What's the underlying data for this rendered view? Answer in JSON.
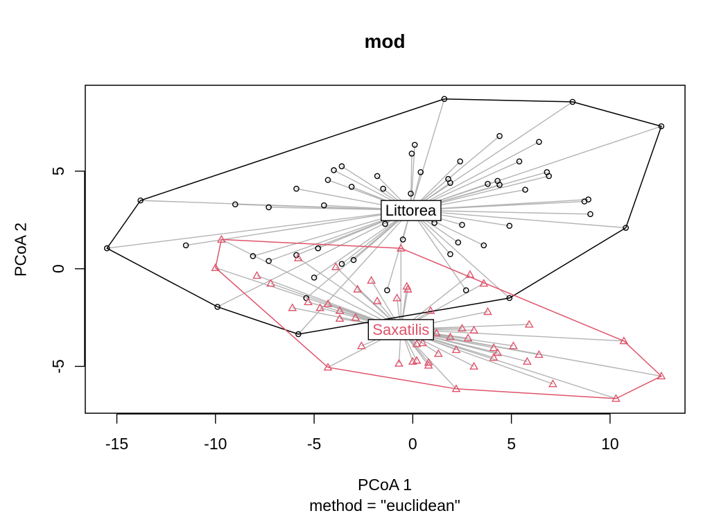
{
  "chart_data": {
    "type": "scatter",
    "title": "mod",
    "xlabel": "PCoA 1",
    "ylabel": "PCoA 2",
    "subtitle": "method = \"euclidean\"",
    "xlim": [
      -16.6,
      13.8
    ],
    "ylim": [
      -7.4,
      9.4
    ],
    "x_ticks": [
      -15,
      -10,
      -5,
      0,
      5,
      10
    ],
    "y_ticks": [
      -5,
      0,
      5
    ],
    "groups": [
      {
        "name": "Littorea",
        "color": "#000000",
        "marker": "circle",
        "centroid": [
          -0.1,
          3.0
        ],
        "points": [
          [
            -15.5,
            1.05
          ],
          [
            -13.8,
            3.5
          ],
          [
            -11.5,
            1.2
          ],
          [
            -9.9,
            -1.95
          ],
          [
            -9.0,
            3.3
          ],
          [
            -8.1,
            0.65
          ],
          [
            -7.3,
            0.4
          ],
          [
            -7.3,
            3.15
          ],
          [
            -5.9,
            4.1
          ],
          [
            -5.9,
            0.7
          ],
          [
            -5.8,
            -3.35
          ],
          [
            -5.4,
            -1.5
          ],
          [
            -5.0,
            -0.45
          ],
          [
            -4.8,
            1.05
          ],
          [
            -4.5,
            3.25
          ],
          [
            -4.3,
            4.55
          ],
          [
            -4.0,
            5.05
          ],
          [
            -3.6,
            5.25
          ],
          [
            -3.6,
            0.25
          ],
          [
            -3.1,
            4.2
          ],
          [
            -3.0,
            0.45
          ],
          [
            -1.8,
            4.75
          ],
          [
            -1.5,
            4.1
          ],
          [
            -1.4,
            2.3
          ],
          [
            -1.3,
            -1.1
          ],
          [
            -0.5,
            1.5
          ],
          [
            -0.1,
            3.85
          ],
          [
            -0.05,
            5.9
          ],
          [
            0.1,
            6.35
          ],
          [
            0.4,
            4.95
          ],
          [
            1.1,
            2.35
          ],
          [
            1.8,
            4.6
          ],
          [
            1.9,
            4.4
          ],
          [
            1.9,
            0.75
          ],
          [
            2.3,
            1.35
          ],
          [
            2.4,
            5.5
          ],
          [
            2.5,
            2.25
          ],
          [
            2.7,
            -1.1
          ],
          [
            3.6,
            1.2
          ],
          [
            3.8,
            4.35
          ],
          [
            4.3,
            4.5
          ],
          [
            4.4,
            6.8
          ],
          [
            4.4,
            4.3
          ],
          [
            4.9,
            2.2
          ],
          [
            4.9,
            -1.5
          ],
          [
            5.4,
            5.5
          ],
          [
            5.7,
            4.05
          ],
          [
            6.4,
            6.5
          ],
          [
            6.8,
            4.95
          ],
          [
            6.9,
            4.75
          ],
          [
            8.1,
            8.55
          ],
          [
            8.7,
            3.45
          ],
          [
            8.9,
            3.55
          ],
          [
            9.0,
            2.8
          ],
          [
            10.8,
            2.1
          ],
          [
            12.6,
            7.3
          ],
          [
            1.6,
            8.7
          ]
        ],
        "hull": [
          [
            1.6,
            8.7
          ],
          [
            8.1,
            8.55
          ],
          [
            12.6,
            7.3
          ],
          [
            10.8,
            2.1
          ],
          [
            4.9,
            -1.5
          ],
          [
            -5.8,
            -3.35
          ],
          [
            -9.9,
            -1.95
          ],
          [
            -15.5,
            1.05
          ],
          [
            -13.8,
            3.5
          ]
        ]
      },
      {
        "name": "Saxatilis",
        "color": "#DF536B",
        "marker": "triangle",
        "centroid": [
          -0.6,
          -3.1
        ],
        "points": [
          [
            -9.7,
            1.5
          ],
          [
            -10.0,
            0.05
          ],
          [
            -7.9,
            -0.35
          ],
          [
            -7.2,
            -0.75
          ],
          [
            -6.1,
            -2.0
          ],
          [
            -5.8,
            0.55
          ],
          [
            -5.3,
            -1.7
          ],
          [
            -4.7,
            -2.0
          ],
          [
            -4.3,
            -1.8
          ],
          [
            -4.3,
            -5.05
          ],
          [
            -3.9,
            0.1
          ],
          [
            -3.7,
            -2.15
          ],
          [
            -3.7,
            -2.55
          ],
          [
            -2.9,
            -2.5
          ],
          [
            -2.8,
            -1.05
          ],
          [
            -2.6,
            -3.95
          ],
          [
            -2.1,
            -0.6
          ],
          [
            -1.8,
            -1.65
          ],
          [
            -0.8,
            -1.5
          ],
          [
            -0.7,
            -4.85
          ],
          [
            -0.6,
            1.05
          ],
          [
            -0.3,
            -0.9
          ],
          [
            -0.25,
            -1.05
          ],
          [
            0.0,
            -4.75
          ],
          [
            0.2,
            -4.7
          ],
          [
            0.2,
            -3.85
          ],
          [
            0.5,
            -3.8
          ],
          [
            0.8,
            -4.8
          ],
          [
            0.8,
            -4.95
          ],
          [
            0.9,
            -2.15
          ],
          [
            1.3,
            -4.35
          ],
          [
            1.9,
            -3.5
          ],
          [
            2.2,
            -4.15
          ],
          [
            2.2,
            -6.15
          ],
          [
            2.5,
            -3.05
          ],
          [
            2.8,
            -3.55
          ],
          [
            2.9,
            -0.3
          ],
          [
            3.1,
            -3.15
          ],
          [
            3.1,
            -5.0
          ],
          [
            3.6,
            -0.75
          ],
          [
            3.8,
            -2.2
          ],
          [
            4.1,
            -4.05
          ],
          [
            4.1,
            -4.55
          ],
          [
            4.3,
            -4.3
          ],
          [
            5.1,
            -3.95
          ],
          [
            5.8,
            -4.75
          ],
          [
            5.9,
            -2.85
          ],
          [
            6.4,
            -4.4
          ],
          [
            7.1,
            -5.9
          ],
          [
            10.3,
            -6.65
          ],
          [
            10.7,
            -3.7
          ],
          [
            12.6,
            -5.5
          ],
          [
            -1.6,
            -3.1
          ],
          [
            1.2,
            -3.3
          ]
        ],
        "hull": [
          [
            -9.7,
            1.5
          ],
          [
            -0.6,
            1.05
          ],
          [
            10.7,
            -3.7
          ],
          [
            12.6,
            -5.5
          ],
          [
            10.3,
            -6.65
          ],
          [
            2.2,
            -6.15
          ],
          [
            -4.3,
            -5.05
          ],
          [
            -10.0,
            0.05
          ]
        ]
      }
    ],
    "legend": "none",
    "grid": false,
    "spider_color": "#b3b3b3"
  }
}
